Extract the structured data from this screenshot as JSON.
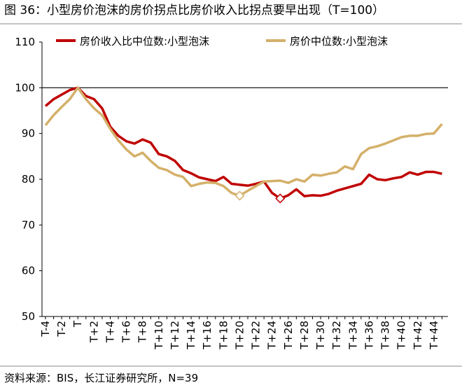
{
  "title": "图 36：小型房价泡沫的房价拐点比房价收入比拐点要早出现（T=100）",
  "source": "资料来源：BIS，长江证券研究所，N=39",
  "chart_data": {
    "type": "line",
    "categories": [
      "T-4",
      null,
      "T-2",
      null,
      "T",
      null,
      "T+2",
      null,
      "T+4",
      null,
      "T+6",
      null,
      "T+8",
      null,
      "T+10",
      null,
      "T+12",
      null,
      "T+14",
      null,
      "T+16",
      null,
      "T+18",
      null,
      "T+20",
      null,
      "T+22",
      null,
      "T+24",
      null,
      "T+26",
      null,
      "T+28",
      null,
      "T+30",
      null,
      "T+32",
      null,
      "T+34",
      null,
      "T+36",
      null,
      "T+38",
      null,
      "T+40",
      null,
      "T+42",
      null,
      "T+44",
      null
    ],
    "series": [
      {
        "name": "房价收入比中位数:小型泡沫",
        "color": "#c00000",
        "marker_index": 29,
        "values": [
          96,
          97.5,
          98.5,
          99.5,
          100,
          98.2,
          97.5,
          95.5,
          91.5,
          89.5,
          88.3,
          87.8,
          88.7,
          88,
          85.5,
          85,
          84,
          82,
          81.3,
          80.4,
          80,
          79.6,
          80.5,
          79,
          78.8,
          78.6,
          79,
          79.5,
          77,
          75.8,
          76.5,
          77.8,
          76.3,
          76.5,
          76.4,
          76.8,
          77.5,
          78,
          78.5,
          79,
          81,
          80,
          79.8,
          80.2,
          80.5,
          81.5,
          81,
          81.6,
          81.6,
          81.2
        ]
      },
      {
        "name": "房价中位数:小型泡沫",
        "color": "#d4b06a",
        "marker_index": 24,
        "values": [
          91.8,
          94,
          95.8,
          97.5,
          100,
          97.5,
          95.5,
          94,
          91,
          88.5,
          86.5,
          85,
          85.8,
          84,
          82.5,
          82,
          81,
          80.5,
          78.5,
          79,
          79.3,
          79.2,
          78.5,
          77,
          76.4,
          77.5,
          78.5,
          79.5,
          79.6,
          79.7,
          79.2,
          80,
          79.5,
          81,
          80.8,
          81.2,
          81.5,
          82.8,
          82.2,
          85.5,
          86.8,
          87.2,
          87.8,
          88.5,
          89.2,
          89.5,
          89.5,
          89.9,
          90,
          92.1
        ]
      }
    ],
    "hline": 100,
    "ylim": [
      50,
      110
    ],
    "yticks": [
      50,
      60,
      70,
      80,
      90,
      100,
      110
    ],
    "legend": "top"
  }
}
